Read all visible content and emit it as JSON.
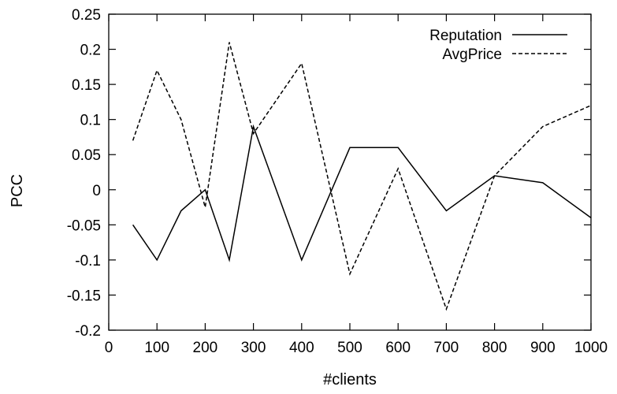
{
  "chart_data": {
    "type": "line",
    "title": "",
    "xlabel": "#clients",
    "ylabel": "PCC",
    "xlim": [
      0,
      1000
    ],
    "ylim": [
      -0.2,
      0.25
    ],
    "x_ticks": [
      "0",
      "100",
      "200",
      "300",
      "400",
      "500",
      "600",
      "700",
      "800",
      "900",
      "1000"
    ],
    "y_ticks": [
      "-0.2",
      "-0.15",
      "-0.1",
      "-0.05",
      "0",
      "0.05",
      "0.1",
      "0.15",
      "0.2",
      "0.25"
    ],
    "grid": false,
    "legend_position": "top-right",
    "series": [
      {
        "name": "Reputation",
        "style": "solid",
        "x": [
          50,
          100,
          150,
          200,
          250,
          300,
          400,
          500,
          600,
          700,
          800,
          900,
          1000
        ],
        "values": [
          -0.05,
          -0.1,
          -0.03,
          0.0,
          -0.1,
          0.09,
          -0.1,
          0.06,
          0.06,
          -0.03,
          0.02,
          0.01,
          -0.04
        ]
      },
      {
        "name": "AvgPrice",
        "style": "dashed",
        "x": [
          50,
          100,
          150,
          200,
          250,
          300,
          400,
          500,
          600,
          700,
          800,
          900,
          1000
        ],
        "values": [
          0.07,
          0.17,
          0.1,
          -0.025,
          0.21,
          0.08,
          0.18,
          -0.12,
          0.03,
          -0.17,
          0.02,
          0.09,
          0.12
        ]
      }
    ]
  }
}
